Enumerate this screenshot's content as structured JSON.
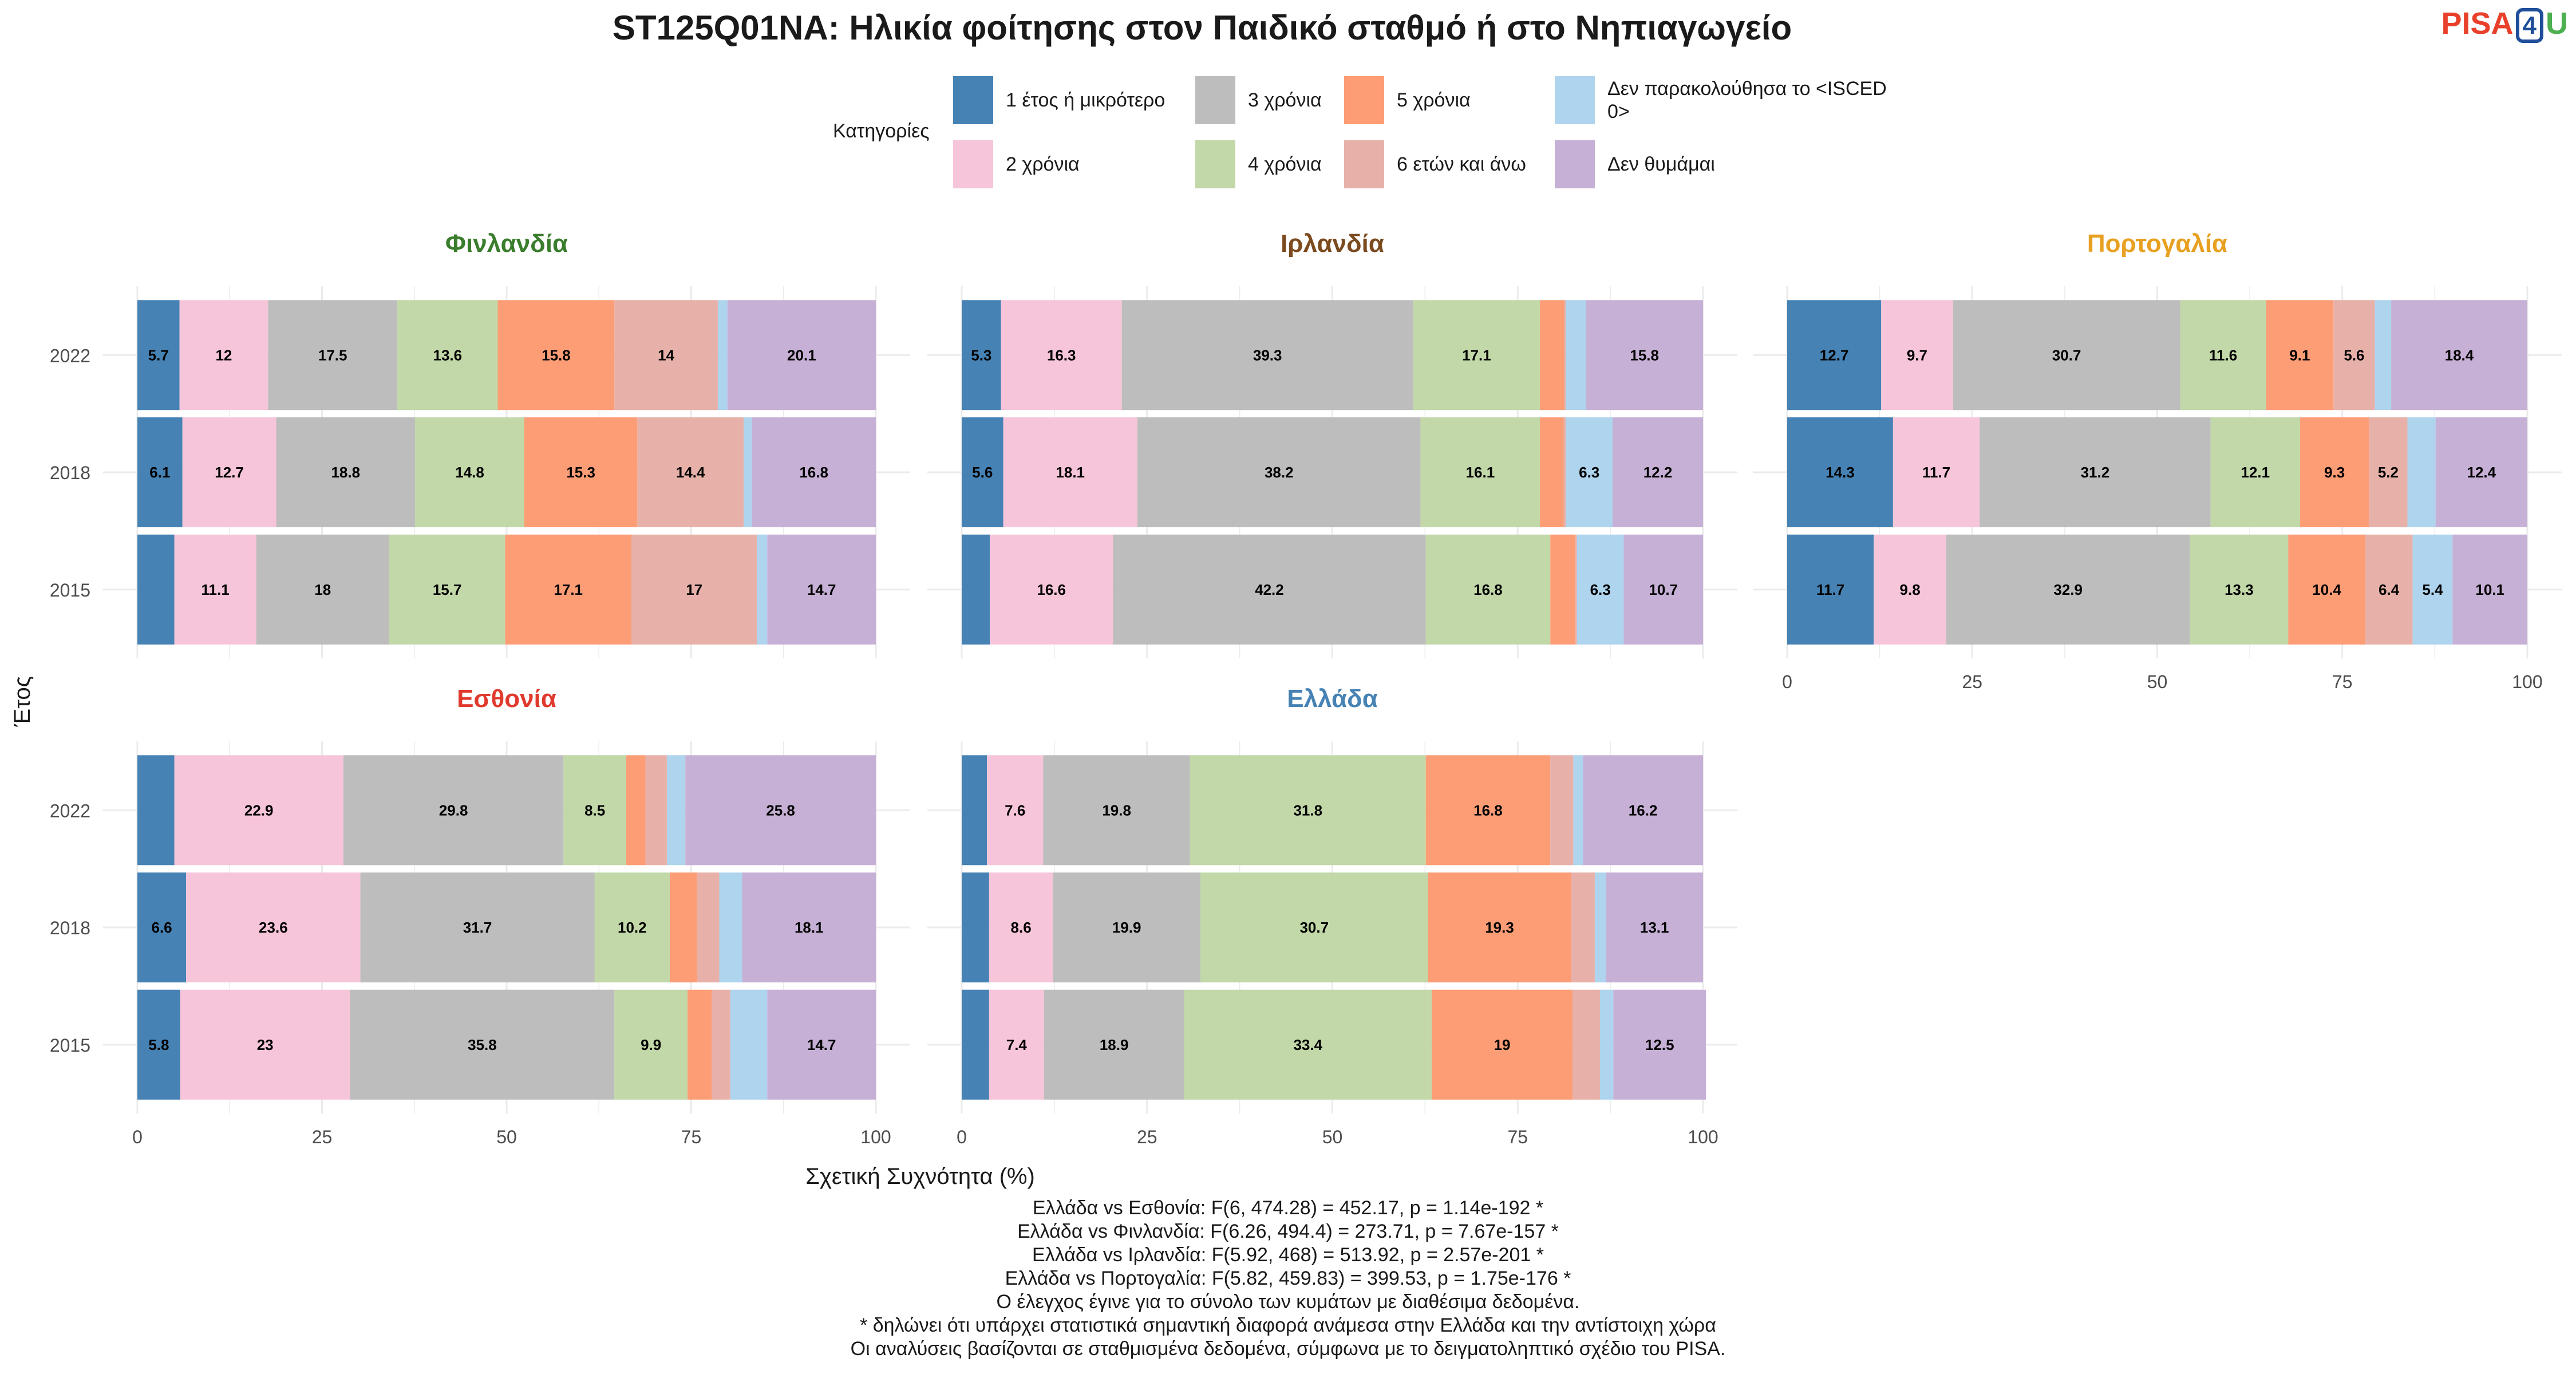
{
  "title": "ST125Q01NA: Ηλικία φοίτησης στον Παιδικό σταθμό ή στο Νηπιαγωγείο",
  "logo": {
    "part1": "PISA",
    "part2": "4",
    "part3": "U"
  },
  "legend": {
    "title": "Κατηγορίες",
    "items": [
      {
        "label": "1 έτος ή μικρότερο",
        "color": "#4682B4"
      },
      {
        "label": "2 χρόνια",
        "color": "#F7C5DA"
      },
      {
        "label": "3 χρόνια",
        "color": "#BDBDBD"
      },
      {
        "label": "4 χρόνια",
        "color": "#C2D8A8"
      },
      {
        "label": "5 χρόνια",
        "color": "#FC9D76"
      },
      {
        "label": "6 ετών και άνω",
        "color": "#E7B1A9"
      },
      {
        "label": "Δεν παρακολούθησα το <ISCED 0>",
        "color": "#AED4EE"
      },
      {
        "label": "Δεν θυμάμαι",
        "color": "#C7B0D6"
      }
    ]
  },
  "chart_data": {
    "type": "bar",
    "orientation": "horizontal-stacked",
    "xlabel": "Σχετική Συχνότητα (%)",
    "ylabel": "Έτος",
    "xlim": [
      0,
      100
    ],
    "xticks": [
      0,
      25,
      50,
      75,
      100
    ],
    "years": [
      "2022",
      "2018",
      "2015"
    ],
    "panels": [
      {
        "name": "Φινλανδία",
        "color": "#3A7D2C",
        "rows": [
          {
            "year": "2022",
            "values": [
              5.7,
              12,
              17.5,
              13.6,
              15.8,
              14,
              1.3,
              20.1
            ],
            "labels": [
              "5.7",
              "12",
              "17.5",
              "13.6",
              "15.8",
              "14",
              "",
              "20.1"
            ]
          },
          {
            "year": "2018",
            "values": [
              6.1,
              12.7,
              18.8,
              14.8,
              15.3,
              14.4,
              1.1,
              16.8
            ],
            "labels": [
              "6.1",
              "12.7",
              "18.8",
              "14.8",
              "15.3",
              "14.4",
              "",
              "16.8"
            ]
          },
          {
            "year": "2015",
            "values": [
              5,
              11.1,
              18,
              15.7,
              17.1,
              17,
              1.4,
              14.7
            ],
            "labels": [
              "",
              "11.1",
              "18",
              "15.7",
              "17.1",
              "17",
              "",
              "14.7"
            ]
          }
        ]
      },
      {
        "name": "Ιρλανδία",
        "color": "#7B4A1E",
        "rows": [
          {
            "year": "2022",
            "values": [
              5.3,
              16.3,
              39.3,
              17.1,
              3.3,
              0.2,
              2.7,
              15.8
            ],
            "labels": [
              "5.3",
              "16.3",
              "39.3",
              "17.1",
              "",
              "",
              "",
              "15.8"
            ]
          },
          {
            "year": "2018",
            "values": [
              5.6,
              18.1,
              38.2,
              16.1,
              3.2,
              0.3,
              6.3,
              12.2
            ],
            "labels": [
              "5.6",
              "18.1",
              "38.2",
              "16.1",
              "",
              "",
              "6.3",
              "12.2"
            ]
          },
          {
            "year": "2015",
            "values": [
              3.8,
              16.6,
              42.2,
              16.8,
              3.4,
              0.2,
              6.3,
              10.7
            ],
            "labels": [
              "",
              "16.6",
              "42.2",
              "16.8",
              "",
              "",
              "6.3",
              "10.7"
            ]
          }
        ]
      },
      {
        "name": "Πορτογαλία",
        "color": "#E8A020",
        "rows": [
          {
            "year": "2022",
            "values": [
              12.7,
              9.7,
              30.7,
              11.6,
              9.1,
              5.6,
              2.2,
              18.4
            ],
            "labels": [
              "12.7",
              "9.7",
              "30.7",
              "11.6",
              "9.1",
              "5.6",
              "",
              "18.4"
            ]
          },
          {
            "year": "2018",
            "values": [
              14.3,
              11.7,
              31.2,
              12.1,
              9.3,
              5.2,
              3.8,
              12.4
            ],
            "labels": [
              "14.3",
              "11.7",
              "31.2",
              "12.1",
              "9.3",
              "5.2",
              "",
              "12.4"
            ]
          },
          {
            "year": "2015",
            "values": [
              11.7,
              9.8,
              32.9,
              13.3,
              10.4,
              6.4,
              5.4,
              10.1
            ],
            "labels": [
              "11.7",
              "9.8",
              "32.9",
              "13.3",
              "10.4",
              "6.4",
              "5.4",
              "10.1"
            ]
          }
        ]
      },
      {
        "name": "Εσθονία",
        "color": "#E03A2E",
        "rows": [
          {
            "year": "2022",
            "values": [
              5,
              22.9,
              29.8,
              8.5,
              2.6,
              2.9,
              2.5,
              25.8
            ],
            "labels": [
              "",
              "22.9",
              "29.8",
              "8.5",
              "",
              "",
              "",
              "25.8"
            ]
          },
          {
            "year": "2018",
            "values": [
              6.6,
              23.6,
              31.7,
              10.2,
              3.7,
              3,
              3.1,
              18.1
            ],
            "labels": [
              "6.6",
              "23.6",
              "31.7",
              "10.2",
              "",
              "",
              "",
              "18.1"
            ]
          },
          {
            "year": "2015",
            "values": [
              5.8,
              23,
              35.8,
              9.9,
              3.3,
              2.5,
              5,
              14.7
            ],
            "labels": [
              "5.8",
              "23",
              "35.8",
              "9.9",
              "",
              "",
              "",
              "14.7"
            ]
          }
        ]
      },
      {
        "name": "Ελλάδα",
        "color": "#4682B4",
        "rows": [
          {
            "year": "2022",
            "values": [
              3.4,
              7.6,
              19.8,
              31.8,
              16.8,
              3.1,
              1.3,
              16.2
            ],
            "labels": [
              "",
              "7.6",
              "19.8",
              "31.8",
              "16.8",
              "",
              "",
              "16.2"
            ]
          },
          {
            "year": "2018",
            "values": [
              3.7,
              8.6,
              19.9,
              30.7,
              19.3,
              3.2,
              1.5,
              13.1
            ],
            "labels": [
              "",
              "8.6",
              "19.9",
              "30.7",
              "19.3",
              "",
              "",
              "13.1"
            ]
          },
          {
            "year": "2015",
            "values": [
              3.7,
              7.4,
              18.9,
              33.4,
              19,
              3.7,
              1.8,
              12.5
            ],
            "labels": [
              "",
              "7.4",
              "18.9",
              "33.4",
              "19",
              "",
              "",
              "12.5"
            ]
          }
        ]
      }
    ]
  },
  "notes": [
    "Ελλάδα vs Εσθονία: F(6, 474.28) = 452.17, p = 1.14e-192 *",
    "Ελλάδα vs Φινλανδία: F(6.26, 494.4) = 273.71, p = 7.67e-157 *",
    "Ελλάδα vs Ιρλανδία: F(5.92, 468) = 513.92, p = 2.57e-201 *",
    "Ελλάδα vs Πορτογαλία: F(5.82, 459.83) = 399.53, p = 1.75e-176 *",
    "Ο έλεγχος έγινε για το σύνολο των κυμάτων με διαθέσιμα δεδομένα.",
    "* δηλώνει ότι υπάρχει στατιστικά σημαντική διαφορά ανάμεσα στην Ελλάδα και την αντίστοιχη χώρα",
    "Οι αναλύσεις βασίζονται σε σταθμισμένα δεδομένα, σύμφωνα με το δειγματοληπτικό σχέδιο του PISA."
  ]
}
